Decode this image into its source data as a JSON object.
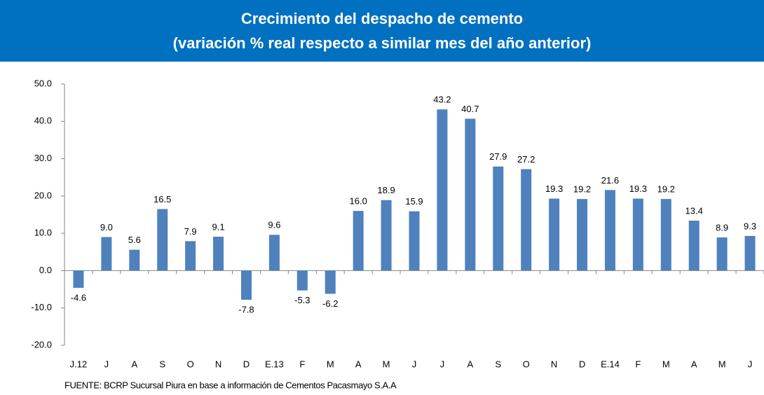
{
  "chart_data": {
    "type": "bar",
    "title": "Crecimiento del despacho de cemento",
    "subtitle": "(variación % real respecto a similar mes del año anterior)",
    "categories": [
      "J.12",
      "J",
      "A",
      "S",
      "O",
      "N",
      "D",
      "E.13",
      "F",
      "M",
      "A",
      "M",
      "J",
      "J",
      "A",
      "S",
      "O",
      "N",
      "D",
      "E.14",
      "F",
      "M",
      "A",
      "M",
      "J"
    ],
    "values": [
      -4.6,
      9.0,
      5.6,
      16.5,
      7.9,
      9.1,
      -7.8,
      9.6,
      -5.3,
      -6.2,
      16.0,
      18.9,
      15.9,
      43.2,
      40.7,
      27.9,
      27.2,
      19.3,
      19.2,
      21.6,
      19.3,
      19.2,
      13.4,
      8.9,
      9.3
    ],
    "value_labels": [
      "-4.6",
      "9.0",
      "5.6",
      "16.5",
      "7.9",
      "9.1",
      "-7.8",
      "9.6",
      "-5.3",
      "-6.2",
      "16.0",
      "18.9",
      "15.9",
      "43.2",
      "40.7",
      "27.9",
      "27.2",
      "19.3",
      "19.2",
      "21.6",
      "19.3",
      "19.2",
      "13.4",
      "8.9",
      "9.3"
    ],
    "color": "#4f81bd",
    "ylim": [
      -20,
      50
    ],
    "yticks": [
      {
        "value": -20,
        "label": "-20.0"
      },
      {
        "value": -10,
        "label": "-10.0"
      },
      {
        "value": 0,
        "label": "0.0"
      },
      {
        "value": 10,
        "label": "10.0"
      },
      {
        "value": 20,
        "label": "20.0"
      },
      {
        "value": 30,
        "label": "30.0"
      },
      {
        "value": 40,
        "label": "40.0"
      },
      {
        "value": 50,
        "label": "50.0"
      }
    ],
    "grid": false,
    "source": "FUENTE: BCRP Sucursal Piura en base a información de Cementos Pacasmayo S.A.A"
  }
}
